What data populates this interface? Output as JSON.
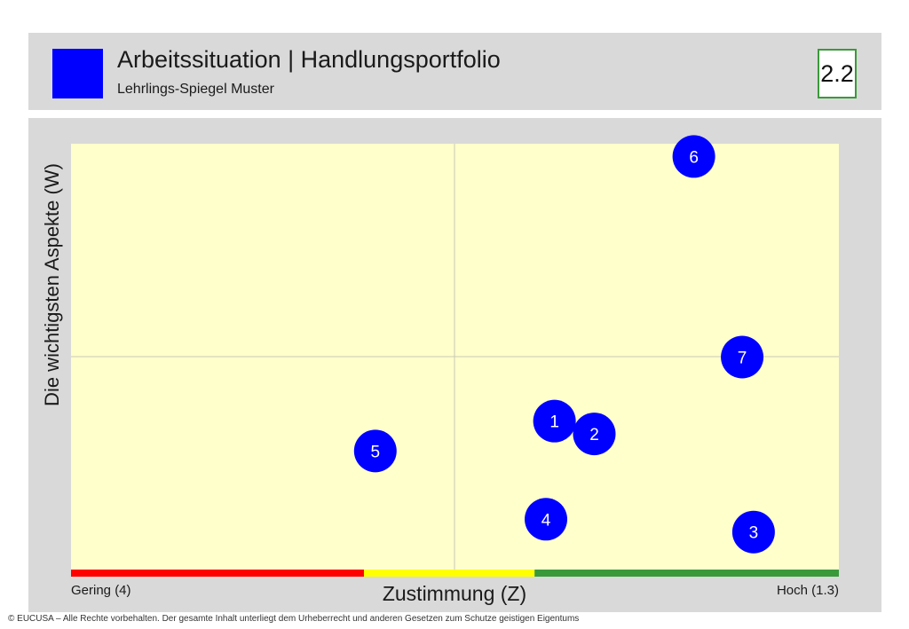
{
  "header": {
    "title": "Arbeitssituation | Handlungsportfolio",
    "subtitle": "Lehrlings-Spiegel Muster",
    "section_number": "2.2",
    "accent_color": "#0000ff",
    "section_border_color": "#3a9a3a"
  },
  "chart_data": {
    "type": "scatter",
    "xlabel": "Zustimmung (Z)",
    "ylabel": "Die wichtigsten Aspekte (W)",
    "x_left_label": "Gering (4)",
    "x_right_label": "Hoch (1.3)",
    "xlim": [
      4,
      1.3
    ],
    "x_reversed": true,
    "plot_background": "#ffffcc",
    "quadrant_lines": true,
    "scale_bar": [
      {
        "color": "#ff0000",
        "from": 4.0,
        "to": 2.97
      },
      {
        "color": "#ffff00",
        "from": 2.97,
        "to": 2.37
      },
      {
        "color": "#3a9a3a",
        "from": 2.37,
        "to": 1.3
      }
    ],
    "points": [
      {
        "label": "1",
        "x": 2.3,
        "y": 0.35
      },
      {
        "label": "2",
        "x": 2.16,
        "y": 0.32
      },
      {
        "label": "3",
        "x": 1.6,
        "y": 0.09
      },
      {
        "label": "4",
        "x": 2.33,
        "y": 0.12
      },
      {
        "label": "5",
        "x": 2.93,
        "y": 0.28
      },
      {
        "label": "6",
        "x": 1.81,
        "y": 0.97
      },
      {
        "label": "7",
        "x": 1.64,
        "y": 0.5
      }
    ],
    "marker_color": "#0000ff"
  },
  "footer": {
    "copyright": "© EUCUSA – Alle Rechte vorbehalten. Der gesamte Inhalt unterliegt dem Urheberrecht und anderen Gesetzen zum Schutze geistigen Eigentums"
  }
}
